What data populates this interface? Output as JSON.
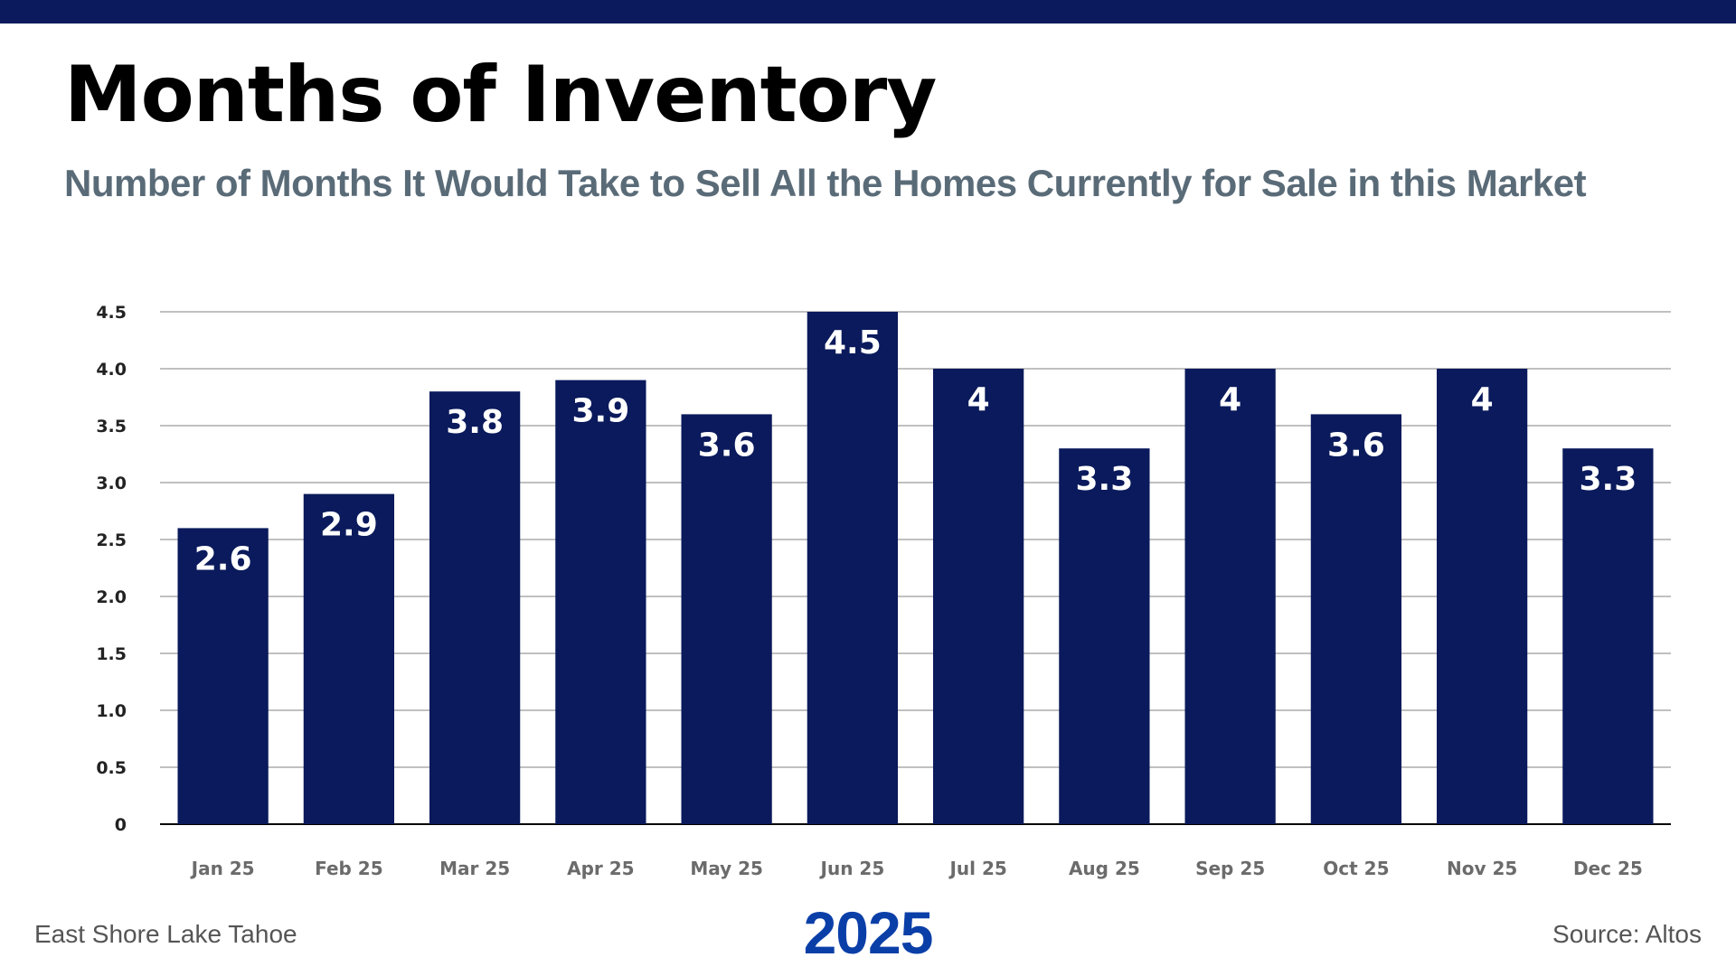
{
  "header": {
    "title": "Months of Inventory",
    "subtitle": "Number of Months It Would Take to Sell All the Homes Currently for Sale in this Market"
  },
  "footer": {
    "location": "East Shore Lake Tahoe",
    "year": "2025",
    "source": "Source: Altos"
  },
  "colors": {
    "bar": "#0a1a5c",
    "top_bar": "#0a1a5c",
    "year": "#0b3fa8",
    "subtitle": "#5a6b78"
  },
  "chart_data": {
    "type": "bar",
    "title": "Months of Inventory",
    "subtitle": "Number of Months It Would Take to Sell All the Homes Currently for Sale in this Market",
    "xlabel": "2025",
    "ylabel": "",
    "categories": [
      "Jan 25",
      "Feb 25",
      "Mar 25",
      "Apr 25",
      "May 25",
      "Jun 25",
      "Jul 25",
      "Aug 25",
      "Sep 25",
      "Oct 25",
      "Nov 25",
      "Dec 25"
    ],
    "values": [
      2.6,
      2.9,
      3.8,
      3.9,
      3.6,
      4.5,
      4,
      3.3,
      4,
      3.6,
      4,
      3.3
    ],
    "data_labels": [
      "2.6",
      "2.9",
      "3.8",
      "3.9",
      "3.6",
      "4.5",
      "4",
      "3.3",
      "4",
      "3.6",
      "4",
      "3.3"
    ],
    "ylim": [
      0,
      4.5
    ],
    "yticks": [
      "0",
      "0.5",
      "1.0",
      "1.5",
      "2.0",
      "2.5",
      "3.0",
      "3.5",
      "4.0",
      "4.5"
    ],
    "grid": true,
    "legend": "none"
  }
}
